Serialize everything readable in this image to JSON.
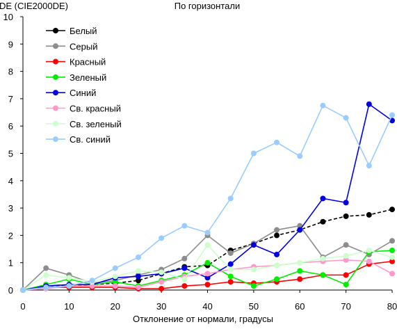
{
  "chart_data": {
    "type": "line",
    "title": "По горизонтали",
    "ylabel": "DE (CIE2000DE)",
    "xlabel": "Отклонение от нормали, градусы",
    "x": [
      0,
      5,
      10,
      15,
      20,
      25,
      30,
      35,
      40,
      45,
      50,
      55,
      60,
      65,
      70,
      75,
      80
    ],
    "xticks": [
      0,
      10,
      20,
      30,
      40,
      50,
      60,
      70,
      80
    ],
    "yticks": [
      0,
      1,
      2,
      3,
      4,
      5,
      6,
      7,
      8,
      9,
      10
    ],
    "xlim": [
      0,
      80
    ],
    "ylim": [
      0,
      10
    ],
    "grid": false,
    "legend_position": "top-left",
    "series": [
      {
        "name": "Белый",
        "color": "#000000",
        "values": [
          0,
          0.15,
          0.15,
          0.2,
          0.25,
          0.35,
          0.6,
          0.85,
          0.9,
          1.45,
          1.7,
          2.0,
          2.2,
          2.5,
          2.7,
          2.75,
          2.95
        ]
      },
      {
        "name": "Серый",
        "color": "#8c8c8c",
        "values": [
          0,
          0.8,
          0.55,
          0.25,
          0.35,
          0.55,
          0.75,
          1.15,
          2.0,
          1.35,
          1.7,
          2.2,
          2.35,
          1.2,
          1.65,
          1.3,
          1.8
        ]
      },
      {
        "name": "Красный",
        "color": "#ff0000",
        "values": [
          0,
          0.1,
          0.1,
          0.1,
          0.1,
          0.05,
          0.05,
          0.15,
          0.2,
          0.3,
          0.25,
          0.3,
          0.4,
          0.55,
          0.55,
          0.95,
          1.05
        ]
      },
      {
        "name": "Зеленый",
        "color": "#00ee00",
        "values": [
          0,
          0.2,
          0.4,
          0.2,
          0.3,
          0.15,
          0.35,
          0.55,
          1.0,
          0.5,
          0.15,
          0.4,
          0.7,
          0.55,
          0.2,
          1.4,
          1.45
        ]
      },
      {
        "name": "Синий",
        "color": "#0000e0",
        "values": [
          0,
          0.15,
          0.2,
          0.2,
          0.45,
          0.5,
          0.6,
          0.8,
          0.45,
          0.95,
          1.65,
          1.3,
          2.2,
          3.35,
          3.2,
          6.8,
          6.2
        ]
      },
      {
        "name": "Св. красный",
        "color": "#ff99cc",
        "values": [
          0,
          0.05,
          0.15,
          0.15,
          0.15,
          0.1,
          0.3,
          0.5,
          0.6,
          0.75,
          0.85,
          0.9,
          1.0,
          1.05,
          1.1,
          1.05,
          0.6
        ]
      },
      {
        "name": "Св. зеленый",
        "color": "#ccffcc",
        "values": [
          0,
          0.55,
          0.45,
          0.3,
          0.5,
          0.7,
          0.65,
          0.4,
          1.65,
          0.75,
          0.75,
          0.9,
          1.0,
          1.15,
          1.25,
          1.45,
          1.2
        ]
      },
      {
        "name": "Св. синий",
        "color": "#99ccff",
        "values": [
          0,
          0.1,
          0.15,
          0.35,
          0.8,
          1.2,
          1.9,
          2.35,
          2.1,
          3.35,
          5.0,
          5.4,
          4.9,
          6.75,
          6.3,
          4.55,
          6.4
        ]
      }
    ]
  }
}
